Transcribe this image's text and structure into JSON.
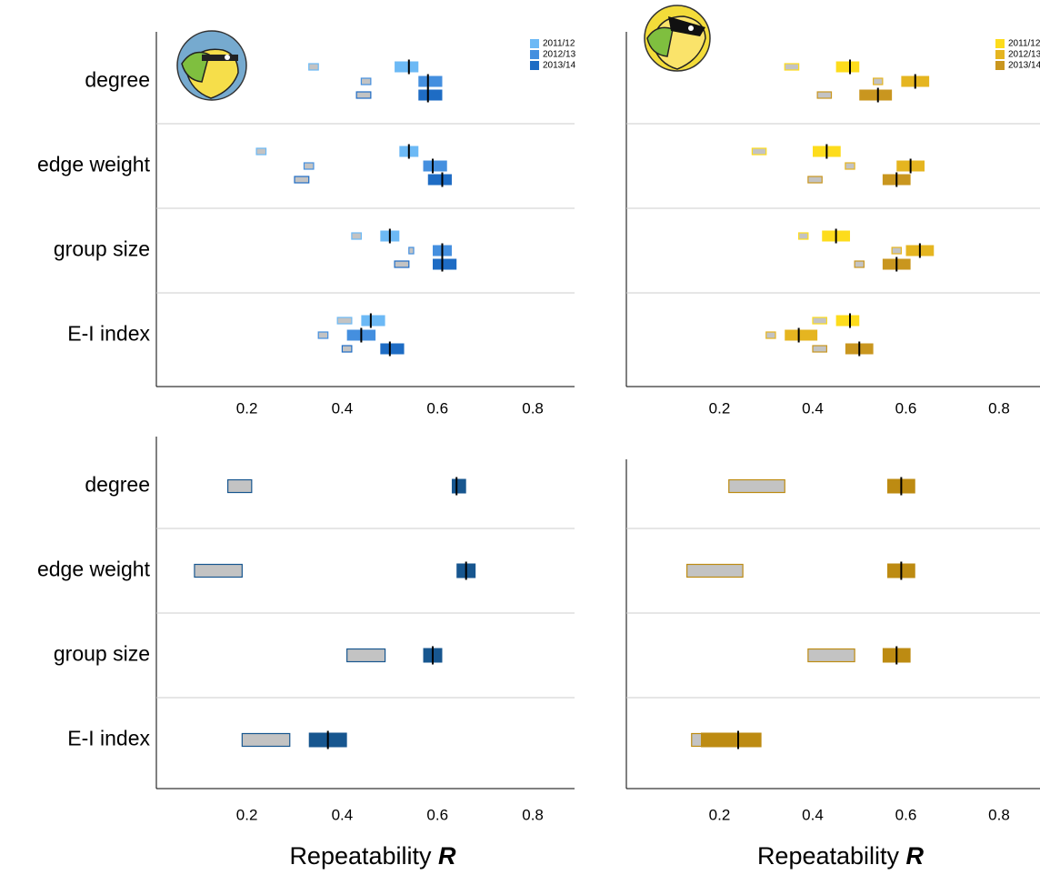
{
  "chart_data": [
    {
      "type": "interval",
      "categories": [
        "degree",
        "edge weight",
        "group size",
        "E-I index"
      ],
      "xlim": [
        0.01,
        0.88
      ],
      "xticks": [
        0.2,
        0.4,
        0.6,
        0.8
      ],
      "legend": "top-right",
      "series": [
        {
          "name": "2011/12",
          "color": "#6cb9f5",
          "values": [
            0.54,
            0.54,
            0.5,
            0.46
          ],
          "lower": [
            0.51,
            0.52,
            0.48,
            0.44
          ],
          "upper": [
            0.56,
            0.56,
            0.52,
            0.49
          ],
          "null_lower": [
            0.33,
            0.22,
            0.42,
            0.39
          ],
          "null_upper": [
            0.35,
            0.24,
            0.44,
            0.42
          ]
        },
        {
          "name": "2012/13",
          "color": "#448fdf",
          "values": [
            0.58,
            0.59,
            0.61,
            0.44
          ],
          "lower": [
            0.56,
            0.57,
            0.59,
            0.41
          ],
          "upper": [
            0.61,
            0.62,
            0.63,
            0.47
          ],
          "null_lower": [
            0.44,
            0.32,
            0.54,
            0.35
          ],
          "null_upper": [
            0.46,
            0.34,
            0.55,
            0.37
          ]
        },
        {
          "name": "2013/14",
          "color": "#1e6cc4",
          "values": [
            0.58,
            0.61,
            0.61,
            0.5
          ],
          "lower": [
            0.56,
            0.58,
            0.59,
            0.48
          ],
          "upper": [
            0.61,
            0.63,
            0.64,
            0.53
          ],
          "null_lower": [
            0.43,
            0.3,
            0.51,
            0.4
          ],
          "null_upper": [
            0.46,
            0.33,
            0.54,
            0.42
          ]
        }
      ]
    },
    {
      "type": "interval",
      "categories": [
        null,
        null,
        null,
        null
      ],
      "xlim": [
        0,
        0.88
      ],
      "xticks": [
        0.2,
        0.4,
        0.6,
        0.8
      ],
      "legend": "top-right",
      "series": [
        {
          "name": "2011/12",
          "color": "#fddc1c",
          "values": [
            0.48,
            0.43,
            0.45,
            0.48
          ],
          "lower": [
            0.45,
            0.4,
            0.42,
            0.45
          ],
          "upper": [
            0.5,
            0.46,
            0.48,
            0.5
          ],
          "null_lower": [
            0.34,
            0.27,
            0.37,
            0.4
          ],
          "null_upper": [
            0.37,
            0.3,
            0.39,
            0.43
          ]
        },
        {
          "name": "2012/13",
          "color": "#e5b520",
          "values": [
            0.62,
            0.61,
            0.63,
            0.37
          ],
          "lower": [
            0.59,
            0.58,
            0.6,
            0.34
          ],
          "upper": [
            0.65,
            0.64,
            0.66,
            0.41
          ],
          "null_lower": [
            0.53,
            0.47,
            0.57,
            0.3
          ],
          "null_upper": [
            0.55,
            0.49,
            0.59,
            0.32
          ]
        },
        {
          "name": "2013/14",
          "color": "#c9961f",
          "values": [
            0.54,
            0.58,
            0.58,
            0.5
          ],
          "lower": [
            0.5,
            0.55,
            0.55,
            0.47
          ],
          "upper": [
            0.57,
            0.61,
            0.61,
            0.53
          ],
          "null_lower": [
            0.41,
            0.39,
            0.49,
            0.4
          ],
          "null_upper": [
            0.44,
            0.42,
            0.51,
            0.43
          ]
        }
      ]
    },
    {
      "type": "interval",
      "categories": [
        "degree",
        "edge weight",
        "group size",
        "E-I index"
      ],
      "xlim": [
        0.01,
        0.88
      ],
      "xticks": [
        0.2,
        0.4,
        0.6,
        0.8
      ],
      "x_label": "Repeatability",
      "x_label_symbol": "R",
      "series": [
        {
          "color": "#17568f",
          "values": [
            0.64,
            0.66,
            0.59,
            0.37
          ],
          "lower": [
            0.63,
            0.64,
            0.57,
            0.33
          ],
          "upper": [
            0.66,
            0.68,
            0.61,
            0.41
          ],
          "null_lower": [
            0.16,
            0.09,
            0.41,
            0.19
          ],
          "null_upper": [
            0.21,
            0.19,
            0.49,
            0.29
          ]
        }
      ]
    },
    {
      "type": "interval",
      "categories": [
        null,
        null,
        null,
        null
      ],
      "xlim": [
        0,
        0.88
      ],
      "xticks": [
        0.2,
        0.4,
        0.6,
        0.8
      ],
      "x_label": "Repeatability",
      "x_label_symbol": "R",
      "series": [
        {
          "color": "#bd8b12",
          "values": [
            0.59,
            0.59,
            0.58,
            0.24
          ],
          "lower": [
            0.56,
            0.56,
            0.55,
            0.16
          ],
          "upper": [
            0.62,
            0.62,
            0.61,
            0.29
          ],
          "null_lower": [
            0.22,
            0.13,
            0.39,
            0.14
          ],
          "null_upper": [
            0.34,
            0.25,
            0.49,
            0.24
          ]
        }
      ]
    }
  ]
}
